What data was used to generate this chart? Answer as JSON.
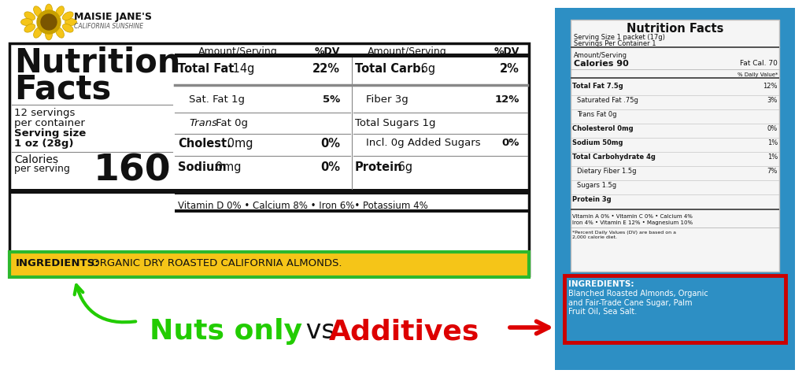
{
  "bg_color": "#ffffff",
  "left_label": {
    "title_line1": "Nutrition",
    "title_line2": "Facts",
    "servings_line1": "12 servings",
    "servings_line2": "per container",
    "serving_size_line1": "Serving size",
    "serving_size_line2": "1 oz (28g)",
    "calories_label": "Calories",
    "calories_sub": "per serving",
    "calories_value": "160",
    "col1_header": "Amount/Serving",
    "col1_dv": "%DV",
    "col2_header": "Amount/Serving",
    "col2_dv": "%DV",
    "rows_col1": [
      {
        "label_bold": "Total Fat",
        "label_reg": " 14g",
        "dv": "22%",
        "indent": false,
        "italic_first": false
      },
      {
        "label_bold": "",
        "label_reg": "Sat. Fat 1g",
        "dv": "5%",
        "indent": true,
        "italic_first": false
      },
      {
        "label_bold": "",
        "label_reg": " Fat 0g",
        "dv": "",
        "indent": true,
        "italic_first": true,
        "italic_word": "Trans"
      },
      {
        "label_bold": "Cholest.",
        "label_reg": " 0mg",
        "dv": "0%",
        "indent": false,
        "italic_first": false
      },
      {
        "label_bold": "Sodium",
        "label_reg": " 0mg",
        "dv": "0%",
        "indent": false,
        "italic_first": false
      }
    ],
    "rows_col2": [
      {
        "label_bold": "Total Carb.",
        "label_reg": " 6g",
        "dv": "2%"
      },
      {
        "label_bold": "",
        "label_reg": "Fiber 3g",
        "dv": "12%",
        "indent": true
      },
      {
        "label_bold": "",
        "label_reg": "Total Sugars 1g",
        "dv": "",
        "indent": false
      },
      {
        "label_bold": "",
        "label_reg": "Incl. 0g Added Sugars",
        "dv": "0%",
        "indent": true
      },
      {
        "label_bold": "Protein",
        "label_reg": " 6g",
        "dv": ""
      }
    ],
    "vitamin_line": "Vitamin D 0% • Calcium 8% • Iron 6%• Potassium 4%",
    "ingredients_label": "INGREDIENTS:",
    "ingredients_text": " ORGANIC DRY ROASTED CALIFORNIA ALMONDS.",
    "ingredients_bg": "#f5c518",
    "ingredients_border": "#2db82d"
  },
  "right_label": {
    "bg_color": "#2d8fc4",
    "title": "Nutrition Facts",
    "serving_size": "Serving Size 1 packet (17g)",
    "servings_container": "Servings Per Container 1",
    "amount_serving": "Amount/Serving",
    "calories": "Calories 90",
    "fat_cal": "Fat Cal. 70",
    "dv_note": "% Daily Value*",
    "rows": [
      {
        "label": "Total Fat 7.5g",
        "val": "12%",
        "bold": true,
        "indent": false
      },
      {
        "label": "Saturated Fat .75g",
        "val": "3%",
        "bold": false,
        "indent": true
      },
      {
        "label": "Trans Fat 0g",
        "val": "",
        "bold": false,
        "indent": true
      },
      {
        "label": "Cholesterol 0mg",
        "val": "0%",
        "bold": true,
        "indent": false
      },
      {
        "label": "Sodium 50mg",
        "val": "1%",
        "bold": true,
        "indent": false
      },
      {
        "label": "Total Carbohydrate 4g",
        "val": "1%",
        "bold": true,
        "indent": false
      },
      {
        "label": "Dietary Fiber 1.5g",
        "val": "7%",
        "bold": false,
        "indent": true
      },
      {
        "label": "Sugars 1.5g",
        "val": "",
        "bold": false,
        "indent": true
      },
      {
        "label": "Protein 3g",
        "val": "",
        "bold": true,
        "indent": false
      }
    ],
    "vitamin_line1": "Vitamin A 0% • Vitamin C 0% • Calcium 4%",
    "vitamin_line2": "Iron 4% • Vitamin E 12% • Magnesium 10%",
    "footnote": "*Percent Daily Values (DV) are based on a\n2,000 calorie diet.",
    "ingredients_label": "INGREDIENTS:",
    "ingredients_text": "Blanched Roasted Almonds, Organic\nand Fair-Trade Cane Sugar, Palm\nFruit Oil, Sea Salt.",
    "ingredients_border_color": "#cc0000"
  },
  "comparison_text": {
    "nuts_only": "Nuts only",
    "vs": " vs ",
    "additives": "Additives",
    "nuts_color": "#22cc00",
    "vs_color": "#111111",
    "additives_color": "#dd0000",
    "arrow_left_color": "#22cc00",
    "arrow_right_color": "#dd0000"
  },
  "logo_text_line1": "MAISIE JANE'S",
  "logo_text_line2": "CALIFORNIA SUNSHINE"
}
